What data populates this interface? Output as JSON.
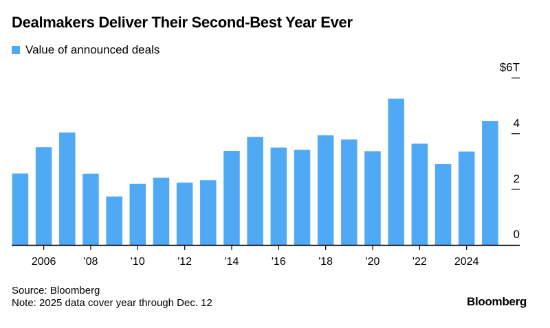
{
  "title": "Dealmakers Deliver Their Second-Best Year Ever",
  "legend": {
    "label": "Value of announced deals",
    "color": "#4FA9F5"
  },
  "chart_data": {
    "type": "bar",
    "title": "Dealmakers Deliver Their Second-Best Year Ever",
    "categories": [
      "2005",
      "2006",
      "2007",
      "2008",
      "2009",
      "2010",
      "2011",
      "2012",
      "2013",
      "2014",
      "2015",
      "2016",
      "2017",
      "2018",
      "2019",
      "2020",
      "2021",
      "2022",
      "2023",
      "2024",
      "2025"
    ],
    "series": [
      {
        "name": "Value of announced deals",
        "values": [
          2.57,
          3.52,
          4.04,
          2.56,
          1.74,
          2.2,
          2.42,
          2.24,
          2.33,
          3.38,
          3.88,
          3.5,
          3.42,
          3.94,
          3.79,
          3.37,
          5.26,
          3.64,
          2.91,
          3.36,
          4.46
        ]
      }
    ],
    "x_tick_labels": [
      {
        "year": "2006",
        "label": "2006"
      },
      {
        "year": "2008",
        "label": "'08"
      },
      {
        "year": "2010",
        "label": "'10"
      },
      {
        "year": "2012",
        "label": "'12"
      },
      {
        "year": "2014",
        "label": "'14"
      },
      {
        "year": "2016",
        "label": "'16"
      },
      {
        "year": "2018",
        "label": "'18"
      },
      {
        "year": "2020",
        "label": "'20"
      },
      {
        "year": "2022",
        "label": "'22"
      },
      {
        "year": "2024",
        "label": "2024"
      }
    ],
    "y_ticks": [
      {
        "value": 0,
        "label": "0"
      },
      {
        "value": 2,
        "label": "2"
      },
      {
        "value": 4,
        "label": "4"
      },
      {
        "value": 6,
        "label": "$6T"
      }
    ],
    "ylim": [
      0,
      6
    ],
    "yaxis_position": "right",
    "grid": false,
    "legend_position": "top-left",
    "bar_color": "#4FA9F5"
  },
  "footer": {
    "source": "Source: Bloomberg",
    "note": "Note: 2025 data cover year through Dec. 12",
    "logo": "Bloomberg"
  }
}
